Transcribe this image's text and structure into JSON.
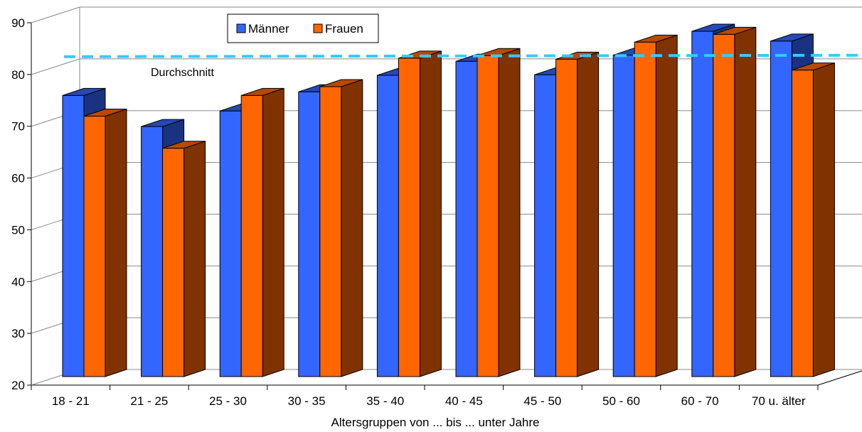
{
  "chart_data": {
    "type": "bar",
    "style": "3d-clustered",
    "categories": [
      "18 - 21",
      "21 - 25",
      "25 - 30",
      "30 - 35",
      "35 - 40",
      "40 - 45",
      "45 - 50",
      "50 - 60",
      "60 - 70",
      "70 u. älter"
    ],
    "series": [
      {
        "name": "Männer",
        "color": "#3366ff",
        "values": [
          74.3,
          68.3,
          71.3,
          75.0,
          78.2,
          80.9,
          78.3,
          82.1,
          86.7,
          84.8
        ]
      },
      {
        "name": "Frauen",
        "color": "#ff6600",
        "values": [
          70.3,
          64.1,
          74.3,
          76.0,
          81.5,
          82.0,
          81.3,
          84.6,
          86.1,
          79.2
        ]
      }
    ],
    "reference_line": {
      "label": "Durchschnitt",
      "value": 81.8,
      "color": "#33ccff",
      "style": "dashed"
    },
    "xlabel": "Altersgruppen von ... bis ... unter Jahre",
    "ylabel": "",
    "ylim": [
      20,
      90
    ],
    "yticks": [
      20,
      30,
      40,
      50,
      60,
      70,
      80,
      90
    ],
    "grid": true,
    "legend_position": "top"
  }
}
